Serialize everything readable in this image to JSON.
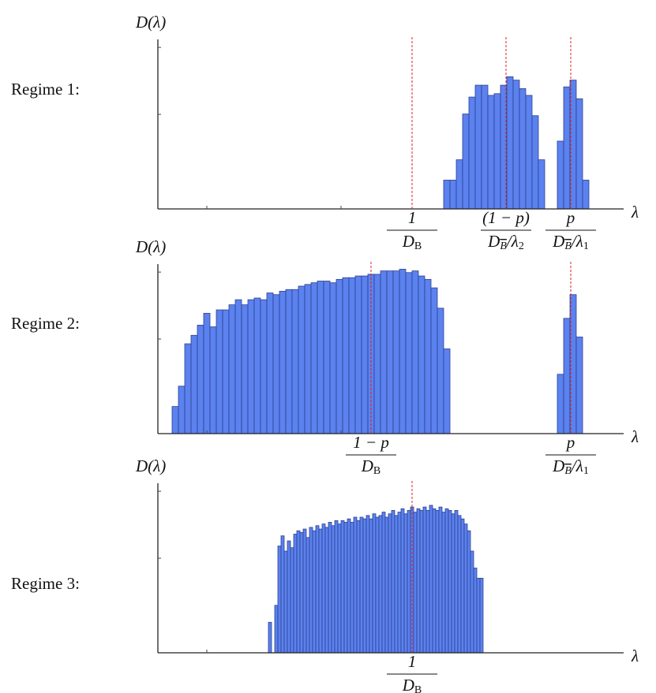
{
  "chart_data": [
    {
      "type": "histogram",
      "title": "Regime 1:",
      "ylabel": "D(λ)",
      "xlabel": "λ",
      "color": "#5b82ee",
      "edgecolor": "#2e3f92",
      "xlim": [
        0,
        59
      ],
      "ylim": [
        0,
        100
      ],
      "xticks": [
        6.2,
        23.2
      ],
      "yticks": [
        55.8,
        95.3
      ],
      "bins": [
        36.2,
        37.0,
        37.8,
        38.6,
        39.4,
        40.2,
        41.0,
        41.8,
        42.6,
        43.4,
        44.2,
        45.0,
        45.8,
        46.6,
        47.4,
        48.2,
        49.0,
        49.8,
        50.6,
        51.4,
        52.2,
        53.0,
        53.8,
        54.6
      ],
      "values": [
        17,
        17,
        29,
        56,
        66,
        73,
        73,
        67,
        68,
        73,
        78,
        76,
        71,
        67,
        55,
        29,
        0,
        0,
        40,
        72,
        76,
        65,
        17
      ],
      "annotations": [
        {
          "x": 32.2,
          "numerator": "1",
          "denominator": [
            {
              "text": "D"
            },
            {
              "text": "B",
              "sub": true
            }
          ]
        },
        {
          "x": 44.1,
          "numerator": "(1 − p)",
          "denominator": [
            {
              "text": "D"
            },
            {
              "text": "B",
              "sub": true,
              "overline": true
            },
            {
              "text": "/λ"
            },
            {
              "text": "2",
              "sub": true
            }
          ]
        },
        {
          "x": 52.3,
          "numerator": "p",
          "denominator": [
            {
              "text": "D"
            },
            {
              "text": "B",
              "sub": true,
              "overline": true
            },
            {
              "text": "/λ"
            },
            {
              "text": "1",
              "sub": true
            }
          ]
        }
      ]
    },
    {
      "type": "histogram",
      "title": "Regime 2:",
      "ylabel": "D(λ)",
      "xlabel": "λ",
      "color": "#5b82ee",
      "edgecolor": "#2e3f92",
      "xlim": [
        0,
        59
      ],
      "ylim": [
        0,
        100
      ],
      "xticks": [
        6.2,
        23.2
      ],
      "yticks": [
        55.8,
        95.3
      ],
      "bins": [
        1.8,
        2.6,
        3.4,
        4.2,
        5.0,
        5.8,
        6.6,
        7.4,
        8.2,
        9.0,
        9.8,
        10.6,
        11.4,
        12.2,
        13.0,
        13.8,
        14.6,
        15.4,
        16.2,
        17.0,
        17.8,
        18.6,
        19.4,
        20.2,
        21.0,
        21.8,
        22.6,
        23.4,
        24.2,
        25.0,
        25.8,
        26.6,
        27.4,
        28.2,
        29.0,
        29.8,
        30.6,
        31.4,
        32.2,
        33.0,
        33.8,
        34.6,
        35.4,
        36.2,
        37.0,
        37.8,
        38.6,
        39.4,
        40.2,
        41.0,
        41.8,
        42.6,
        43.4,
        44.2,
        45.0,
        45.8,
        46.6,
        47.4,
        48.2,
        49.0,
        49.8,
        50.6,
        51.4,
        52.2,
        53.0,
        53.8
      ],
      "values": [
        16,
        28,
        53,
        58,
        64,
        71,
        63,
        73,
        73,
        76,
        79,
        76,
        79,
        80,
        79,
        83,
        82,
        84,
        85,
        85,
        87,
        88,
        89,
        90,
        90,
        89,
        91,
        92,
        92,
        93,
        93,
        94,
        94,
        96,
        96,
        96,
        97,
        95,
        96,
        93,
        91,
        86,
        74,
        50,
        0,
        0,
        0,
        0,
        0,
        0,
        0,
        0,
        0,
        0,
        0,
        0,
        0,
        0,
        0,
        0,
        0,
        35,
        68,
        82,
        57
      ],
      "annotations": [
        {
          "x": 27.0,
          "numerator": "1 − p",
          "denominator": [
            {
              "text": "D"
            },
            {
              "text": "B",
              "sub": true
            }
          ]
        },
        {
          "x": 52.3,
          "numerator": "p",
          "denominator": [
            {
              "text": "D"
            },
            {
              "text": "B",
              "sub": true,
              "overline": true
            },
            {
              "text": "/λ"
            },
            {
              "text": "1",
              "sub": true
            }
          ]
        }
      ]
    },
    {
      "type": "histogram",
      "title": "Regime 3:",
      "ylabel": "D(λ)",
      "xlabel": "λ",
      "color": "#5b82ee",
      "edgecolor": "#2e3f92",
      "xlim": [
        0,
        59
      ],
      "ylim": [
        0,
        100
      ],
      "xticks": [
        6.2,
        23.2
      ],
      "yticks": [
        55.8,
        95.3
      ],
      "bins": [
        14.0,
        14.4,
        14.8,
        15.2,
        15.6,
        16.0,
        16.4,
        16.8,
        17.2,
        17.6,
        18.0,
        18.4,
        18.8,
        19.2,
        19.6,
        20.0,
        20.4,
        20.8,
        21.2,
        21.6,
        22.0,
        22.4,
        22.8,
        23.2,
        23.6,
        24.0,
        24.4,
        24.8,
        25.2,
        25.6,
        26.0,
        26.4,
        26.8,
        27.2,
        27.6,
        28.0,
        28.4,
        28.8,
        29.2,
        29.6,
        30.0,
        30.4,
        30.8,
        31.2,
        31.6,
        32.0,
        32.4,
        32.8,
        33.2,
        33.6,
        34.0,
        34.4,
        34.8,
        35.2,
        35.6,
        36.0,
        36.4,
        36.8,
        37.2,
        37.6,
        38.0,
        38.4,
        38.8,
        39.2,
        39.6,
        40.0,
        40.4,
        40.8,
        41.2
      ],
      "values": [
        18,
        0,
        28,
        63,
        69,
        60,
        66,
        62,
        70,
        72,
        71,
        73,
        68,
        74,
        72,
        75,
        73,
        76,
        74,
        77,
        75,
        78,
        76,
        78,
        77,
        79,
        77,
        80,
        78,
        80,
        79,
        81,
        79,
        82,
        80,
        81,
        83,
        80,
        82,
        84,
        81,
        83,
        85,
        82,
        84,
        86,
        83,
        85,
        84,
        86,
        84,
        87,
        85,
        84,
        86,
        83,
        85,
        84,
        82,
        84,
        81,
        79,
        76,
        72,
        60,
        50,
        44,
        44
      ],
      "annotations": [
        {
          "x": 32.2,
          "numerator": "1",
          "denominator": [
            {
              "text": "D"
            },
            {
              "text": "B",
              "sub": true
            }
          ]
        }
      ]
    }
  ]
}
